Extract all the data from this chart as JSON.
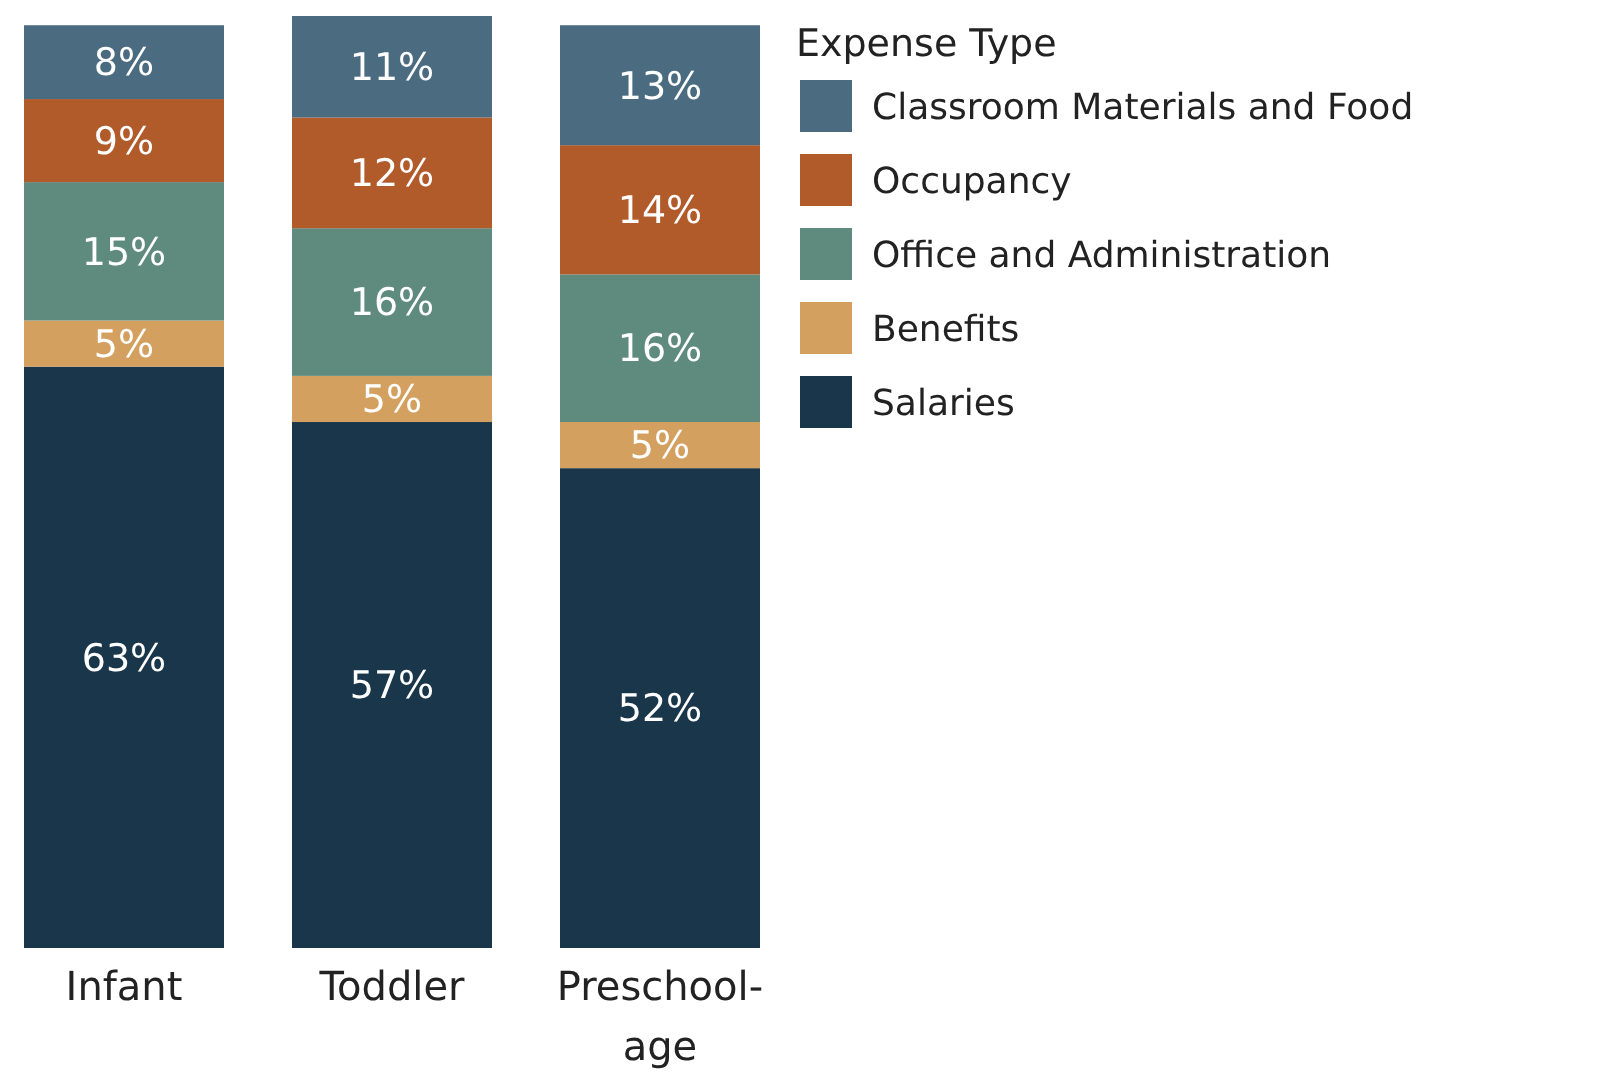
{
  "chart_data": {
    "type": "bar",
    "stacked": true,
    "legend": "top right",
    "legend_title": "Expense Type",
    "categories": [
      "Infant",
      "Toddler",
      "Preschool-age"
    ],
    "series": [
      {
        "name": "Salaries",
        "color": "#1a364b",
        "values": [
          63,
          57,
          52
        ],
        "value_labels": [
          "63%",
          "57%",
          "52%"
        ]
      },
      {
        "name": "Benefits",
        "color": "#d4a05f",
        "values": [
          5,
          5,
          5
        ],
        "value_labels": [
          "5%",
          "5%",
          "5%"
        ]
      },
      {
        "name": "Office and Administration",
        "color": "#5f8b7e",
        "values": [
          15,
          16,
          16
        ],
        "value_labels": [
          "15%",
          "16%",
          "16%"
        ]
      },
      {
        "name": "Occupancy",
        "color": "#b15a2a",
        "values": [
          9,
          12,
          14
        ],
        "value_labels": [
          "9%",
          "12%",
          "14%"
        ]
      },
      {
        "name": "Classroom Materials and Food",
        "color": "#4a6b80",
        "values": [
          8,
          11,
          13
        ],
        "value_labels": [
          "8%",
          "11%",
          "13%"
        ]
      }
    ]
  }
}
